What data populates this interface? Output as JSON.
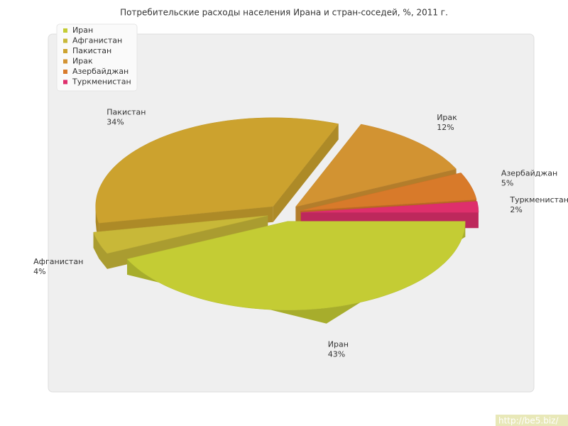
{
  "chart_data": {
    "type": "pie3d",
    "title": "Потребительские расходы населения Ирана и стран-соседей, %, 2011 г.",
    "categories": [
      "Иран",
      "Афганистан",
      "Пакистан",
      "Ирак",
      "Азербайджан",
      "Туркменистан"
    ],
    "values": [
      43,
      4,
      34,
      12,
      5,
      2
    ],
    "value_labels": [
      "43%",
      "4%",
      "34%",
      "12%",
      "5%",
      "2%"
    ],
    "colors": [
      "#c4cc34",
      "#c8b838",
      "#cca22e",
      "#d29332",
      "#d87a2a",
      "#de2f6c"
    ],
    "legend": "top-left",
    "watermark": "http://be5.biz/"
  }
}
